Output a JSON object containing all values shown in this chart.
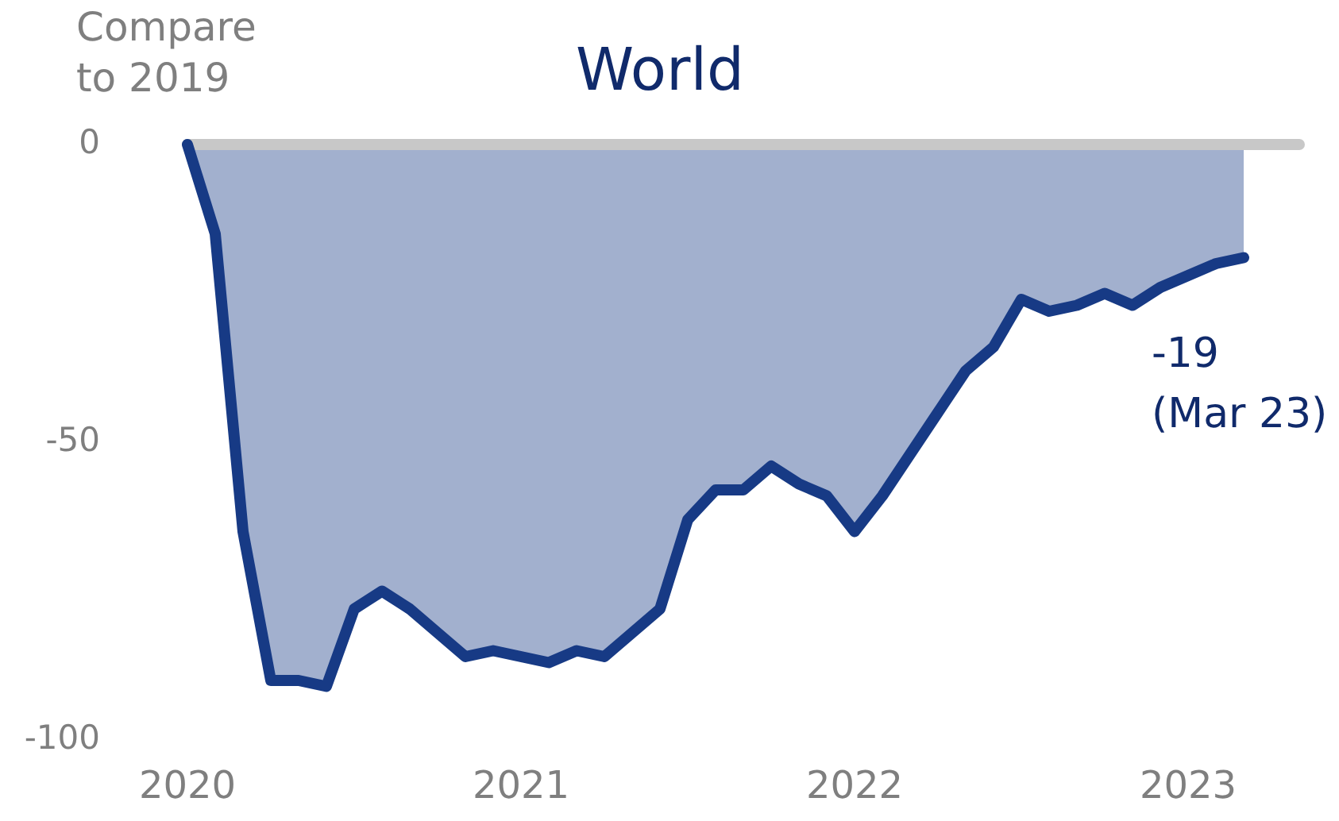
{
  "chart_data": {
    "type": "area",
    "title": "World",
    "ylabel": "Compare to 2019",
    "x": [
      "2020-01",
      "2020-02",
      "2020-03",
      "2020-04",
      "2020-05",
      "2020-06",
      "2020-07",
      "2020-08",
      "2020-09",
      "2020-10",
      "2020-11",
      "2020-12",
      "2021-01",
      "2021-02",
      "2021-03",
      "2021-04",
      "2021-05",
      "2021-06",
      "2021-07",
      "2021-08",
      "2021-09",
      "2021-10",
      "2021-11",
      "2021-12",
      "2022-01",
      "2022-02",
      "2022-03",
      "2022-04",
      "2022-05",
      "2022-06",
      "2022-07",
      "2022-08",
      "2022-09",
      "2022-10",
      "2022-11",
      "2022-12",
      "2023-01",
      "2023-02",
      "2023-03"
    ],
    "values": [
      0,
      -15,
      -65,
      -90,
      -90,
      -91,
      -78,
      -75,
      -78,
      -82,
      -86,
      -85,
      -86,
      -87,
      -85,
      -86,
      -82,
      -78,
      -63,
      -58,
      -58,
      -54,
      -57,
      -59,
      -65,
      -59,
      -52,
      -45,
      -38,
      -34,
      -26,
      -28,
      -27,
      -25,
      -27,
      -24,
      -22,
      -20,
      -19
    ],
    "color": "#173a85",
    "xlim": [
      "2020-01",
      "2023-05"
    ],
    "xticks": [
      "2020",
      "2021",
      "2022",
      "2023"
    ],
    "ylim": [
      -100,
      0
    ],
    "yticks": [
      -100,
      -50,
      0
    ],
    "ref_lines": [
      {
        "axis": "y",
        "value": 0,
        "color": "#c8c8c8"
      }
    ],
    "annotations": [
      {
        "text": "-19\n(Mar 23)",
        "x": "2023-03",
        "y": -19
      }
    ]
  }
}
